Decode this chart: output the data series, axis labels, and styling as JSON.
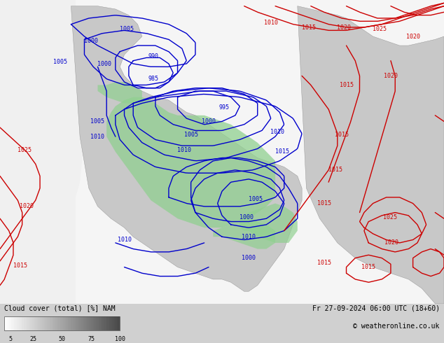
{
  "title_left": "Cloud cover (total) [%] NAM",
  "title_right": "Fr 27-09-2024 06:00 UTC (18+60)",
  "copyright": "© weatheronline.co.uk",
  "colorbar_ticks": [
    5,
    25,
    50,
    75,
    100
  ],
  "bg_color": "#e8e8e8",
  "fig_width": 6.34,
  "fig_height": 4.9,
  "dpi": 100,
  "isobar_blue": "#0000cc",
  "isobar_red": "#cc0000",
  "land_color": "#c8c8c8",
  "ocean_color": "#f0f0f0",
  "cloud_green": "#90d090",
  "label_fontsize": 6,
  "title_fontsize": 7,
  "copyright_fontsize": 7,
  "isobar_linewidth": 1.0
}
